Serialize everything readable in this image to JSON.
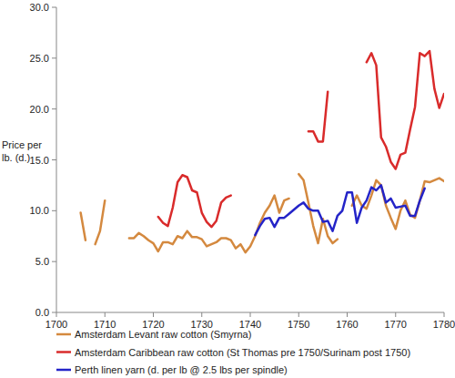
{
  "chart_data": {
    "type": "line",
    "y_label": "Price per lb. (d.)",
    "x": [
      1700,
      1701,
      1702,
      1703,
      1704,
      1705,
      1706,
      1707,
      1708,
      1709,
      1710,
      1711,
      1712,
      1713,
      1714,
      1715,
      1716,
      1717,
      1718,
      1719,
      1720,
      1721,
      1722,
      1723,
      1724,
      1725,
      1726,
      1727,
      1728,
      1729,
      1730,
      1731,
      1732,
      1733,
      1734,
      1735,
      1736,
      1737,
      1738,
      1739,
      1740,
      1741,
      1742,
      1743,
      1744,
      1745,
      1746,
      1747,
      1748,
      1749,
      1750,
      1751,
      1752,
      1753,
      1754,
      1755,
      1756,
      1757,
      1758,
      1759,
      1760,
      1761,
      1762,
      1763,
      1764,
      1765,
      1766,
      1767,
      1768,
      1769,
      1770,
      1771,
      1772,
      1773,
      1774,
      1775,
      1776,
      1777,
      1778,
      1779,
      1780
    ],
    "series": [
      {
        "name": "Amsterdam Levant raw cotton (Smyrna)",
        "color": "#d4893f",
        "values": [
          null,
          null,
          null,
          null,
          null,
          9.8,
          7.1,
          null,
          6.7,
          8.0,
          11.0,
          null,
          null,
          null,
          null,
          7.3,
          7.3,
          7.8,
          7.5,
          7.1,
          6.8,
          6.0,
          6.9,
          6.9,
          6.7,
          7.5,
          7.3,
          8.0,
          7.4,
          7.4,
          7.2,
          6.5,
          6.7,
          6.9,
          7.3,
          7.3,
          7.1,
          6.3,
          6.7,
          5.9,
          6.5,
          7.5,
          8.8,
          9.8,
          10.5,
          11.5,
          9.8,
          11.0,
          11.2,
          null,
          13.6,
          13.0,
          10.8,
          8.5,
          6.8,
          9.2,
          7.5,
          6.8,
          7.2,
          null,
          null,
          10.5,
          11.5,
          10.5,
          10.2,
          11.5,
          13.0,
          12.5,
          10.5,
          9.3,
          8.2,
          10.0,
          11.0,
          9.6,
          9.3,
          11.0,
          12.9,
          12.8,
          13.0,
          13.2,
          12.9
        ]
      },
      {
        "name": "Amsterdam Caribbean raw cotton (St Thomas pre 1750/Surinam post 1750)",
        "color": "#d92b2b",
        "values": [
          null,
          null,
          null,
          null,
          null,
          null,
          null,
          null,
          null,
          null,
          null,
          null,
          null,
          null,
          null,
          null,
          null,
          null,
          null,
          null,
          null,
          9.4,
          8.8,
          8.5,
          10.3,
          12.8,
          13.5,
          13.3,
          12.0,
          11.8,
          9.8,
          8.9,
          8.4,
          9.0,
          10.8,
          11.3,
          11.5,
          null,
          null,
          null,
          null,
          null,
          null,
          null,
          null,
          null,
          null,
          null,
          null,
          null,
          null,
          null,
          17.8,
          17.8,
          16.8,
          16.8,
          21.7,
          null,
          null,
          null,
          null,
          null,
          null,
          null,
          24.6,
          25.5,
          24.3,
          17.2,
          16.3,
          14.8,
          14.1,
          15.5,
          15.7,
          18.0,
          20.2,
          25.5,
          25.2,
          25.7,
          22.0,
          20.1,
          21.5
        ]
      },
      {
        "name": "Perth linen yarn (d. per lb @ 2.5 lbs per spindle)",
        "color": "#2424c8",
        "values": [
          null,
          null,
          null,
          null,
          null,
          null,
          null,
          null,
          null,
          null,
          null,
          null,
          null,
          null,
          null,
          null,
          null,
          null,
          null,
          null,
          null,
          null,
          null,
          null,
          null,
          null,
          null,
          null,
          null,
          null,
          null,
          null,
          null,
          null,
          null,
          null,
          null,
          null,
          null,
          null,
          null,
          7.6,
          8.5,
          9.2,
          9.3,
          8.4,
          9.3,
          9.3,
          9.7,
          10.1,
          10.5,
          10.8,
          10.2,
          10.0,
          10.0,
          8.9,
          9.0,
          8.0,
          9.5,
          10.0,
          11.8,
          11.8,
          8.8,
          10.3,
          11.0,
          12.3,
          12.0,
          12.5,
          10.8,
          11.2,
          10.3,
          10.4,
          10.5,
          9.5,
          9.5,
          11.0,
          12.2,
          null,
          null,
          null,
          null
        ]
      }
    ],
    "xlim": [
      1700,
      1780
    ],
    "xticks": [
      1700,
      1710,
      1720,
      1730,
      1740,
      1750,
      1760,
      1770,
      1780
    ],
    "ylim": [
      0,
      30
    ],
    "yticks": [
      {
        "value": 0,
        "label": "0.0"
      },
      {
        "value": 5,
        "label": "5.0"
      },
      {
        "value": 10,
        "label": "10.0"
      },
      {
        "value": 15,
        "label": "15.0"
      },
      {
        "value": 20,
        "label": "20.0"
      },
      {
        "value": 25,
        "label": "25.0"
      },
      {
        "value": 30,
        "label": "30.0"
      }
    ],
    "grid": false,
    "legend": "bottom"
  }
}
